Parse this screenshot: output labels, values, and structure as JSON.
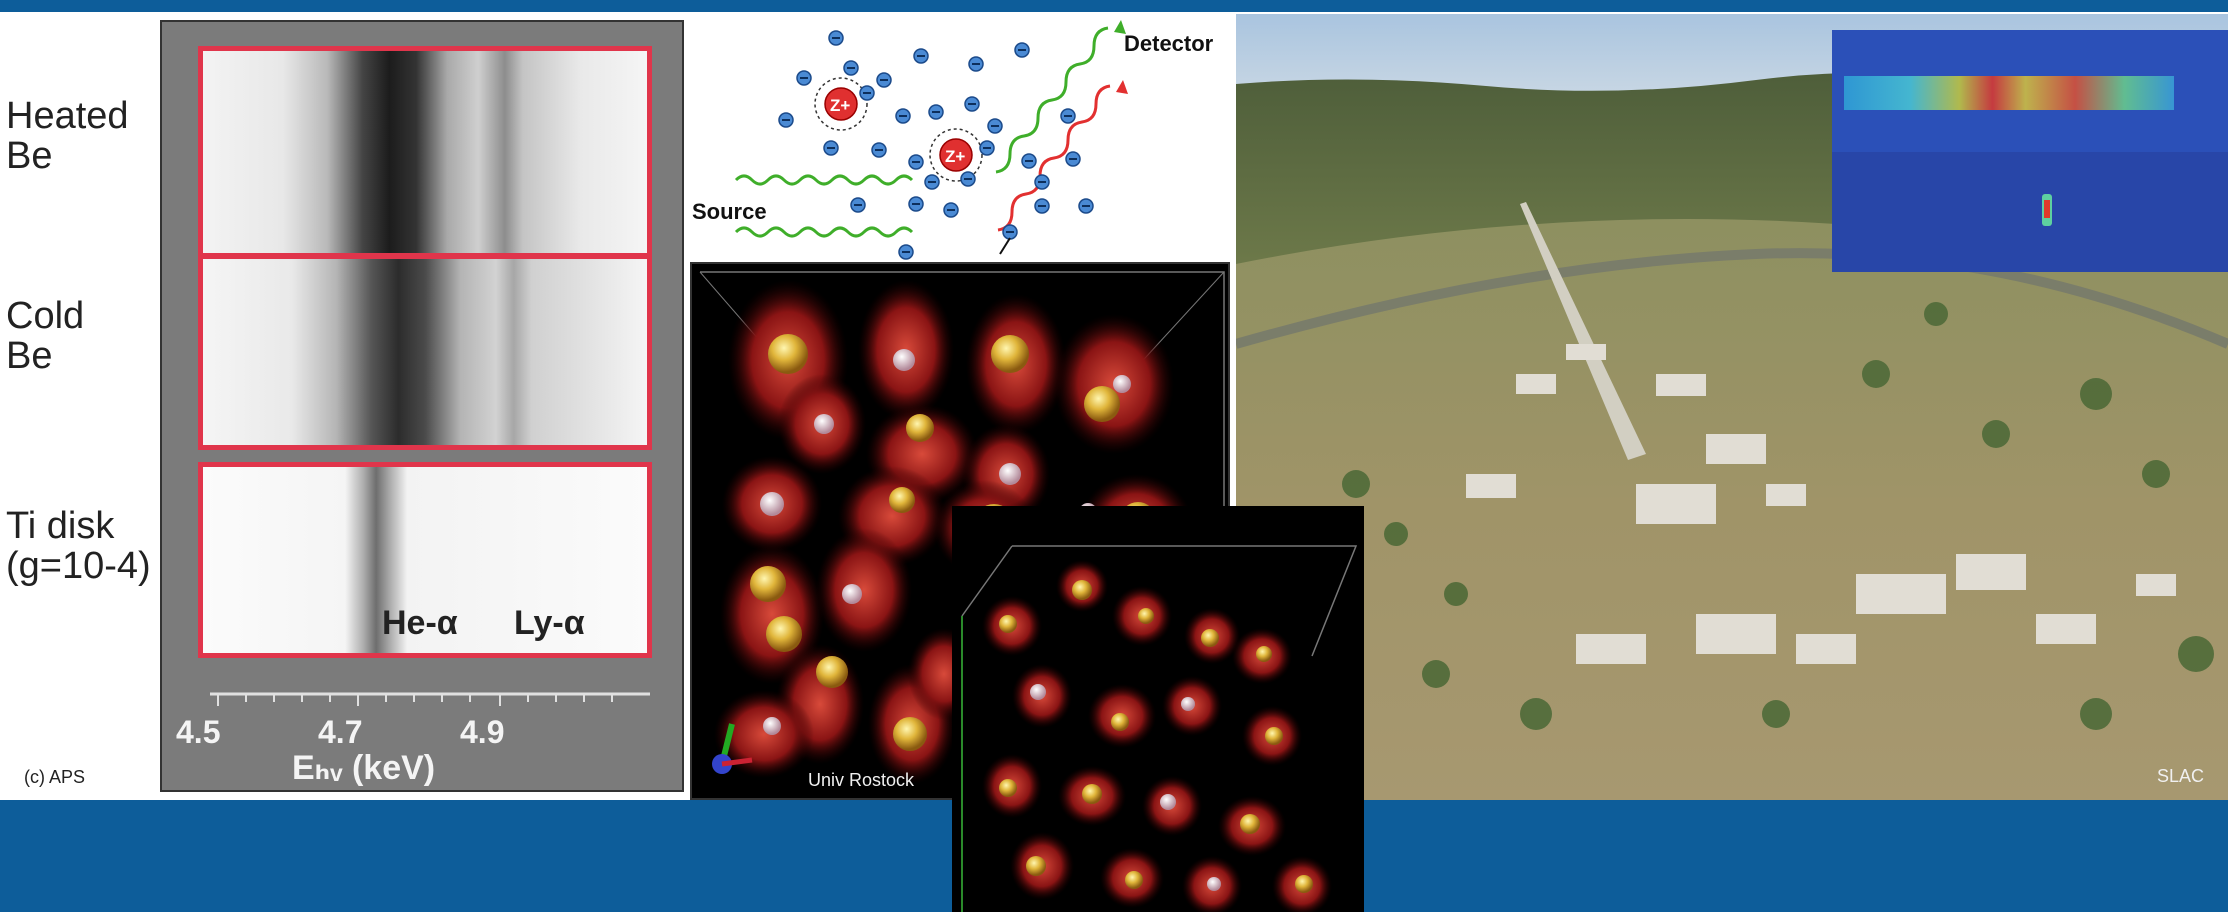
{
  "spectra_panel": {
    "row_labels": [
      {
        "line1": "Heated",
        "line2": "Be"
      },
      {
        "line1": "Cold",
        "line2": "Be"
      },
      {
        "line1": "Ti disk",
        "line2": "(g=10-4)"
      }
    ],
    "peak_labels": [
      "He-α",
      "Ly-α"
    ],
    "ticks": [
      "4.5",
      "4.7",
      "4.9"
    ],
    "axis_label": "Eₕᵥ (keV)",
    "credit": "(c) APS"
  },
  "scattering_diagram": {
    "source_label": "Source",
    "detector_label": "Detector",
    "ion_label": "Z+",
    "electron_symbol": "−"
  },
  "simulation_panel": {
    "credit": "Univ Rostock"
  },
  "photo_panel": {
    "credit": "SLAC"
  },
  "colors": {
    "brand_blue": "#0d5d9a",
    "frame_red": "#e0354b",
    "ray_green": "#3fae2a",
    "ray_red": "#e23030"
  }
}
